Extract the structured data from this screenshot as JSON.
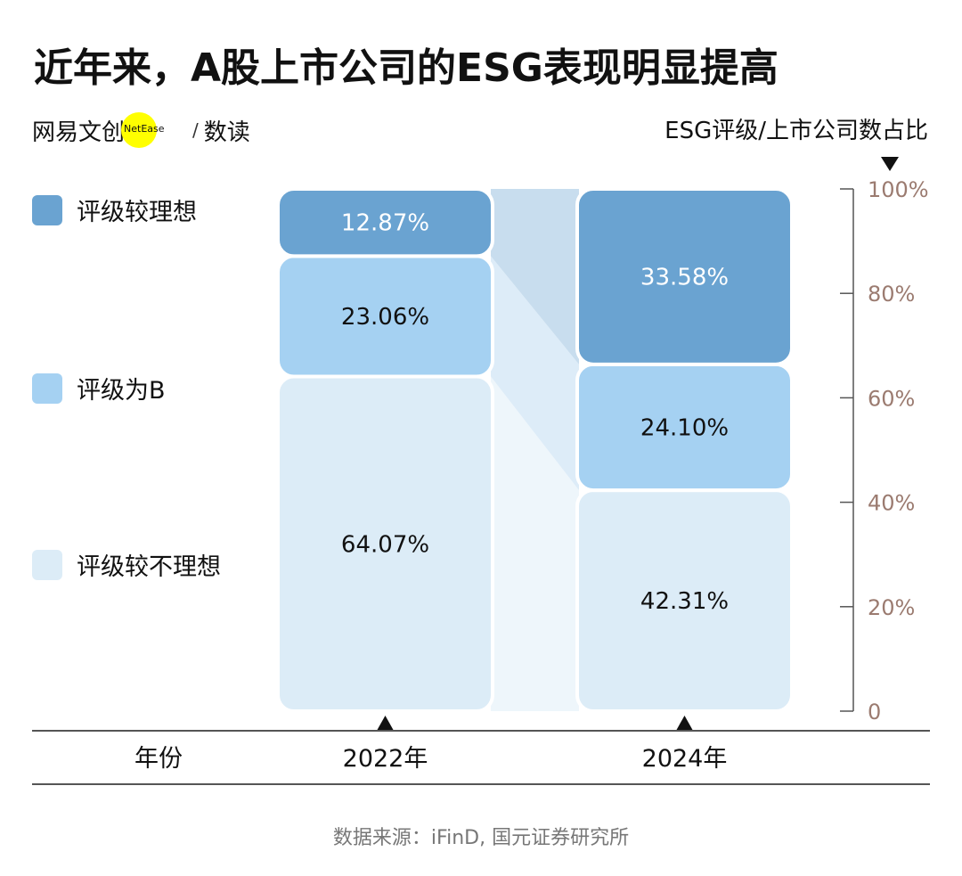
{
  "title": "近年来，A股上市公司的ESG表现明显提高",
  "logo": {
    "brand": "网易文创",
    "sub": "NetEase",
    "section": "数读"
  },
  "unit_label": "ESG评级/上市公司数占比",
  "source": "数据来源：iFinD, 国元证券研究所",
  "colors": {
    "good": "#6aa3d1",
    "b": "#a5d1f2",
    "poor": "#dcecf7",
    "good_band": "#c8ddee",
    "b_band": "#ddecf8",
    "poor_band": "#eef6fb",
    "axis_text": "#9b7b70"
  },
  "chart_data": {
    "type": "bar",
    "stacked": true,
    "xlabel": "年份",
    "categories": [
      "2022年",
      "2024年"
    ],
    "series": [
      {
        "name": "评级较不理想",
        "values": [
          64.07,
          42.31
        ],
        "labels": [
          "64.07%",
          "42.31%"
        ]
      },
      {
        "name": "评级为B",
        "values": [
          23.06,
          24.1
        ],
        "labels": [
          "23.06%",
          "24.10%"
        ]
      },
      {
        "name": "评级较理想",
        "values": [
          12.87,
          33.58
        ],
        "labels": [
          "12.87%",
          "33.58%"
        ]
      }
    ],
    "ylim": [
      0,
      100
    ],
    "yticks": [
      0,
      20,
      40,
      60,
      80,
      100
    ],
    "ytick_labels": [
      "0",
      "20%",
      "40%",
      "60%",
      "80%",
      "100%"
    ],
    "axis_position": "right",
    "legend_position": "left"
  }
}
